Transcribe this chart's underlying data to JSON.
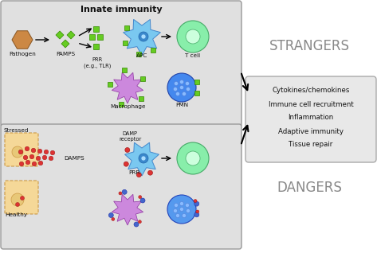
{
  "bg_color": "#f5f5f5",
  "panel_bg": "#e0e0e0",
  "panel_edge": "#999999",
  "title_top": "Innate immunity",
  "label_strangers": "STRANGERS",
  "label_dangers": "DANGERS",
  "box_labels": [
    "Cytokines/chemokines",
    "Immune cell recruitment",
    "Inflammation",
    "Adaptive immunity",
    "Tissue repair"
  ],
  "apc_color": "#7ac8f0",
  "apc_edge": "#4488cc",
  "tcell_color": "#88eeaa",
  "tcell_edge": "#44aa66",
  "macrophage_color": "#cc88dd",
  "macrophage_edge": "#9944aa",
  "pmn_color": "#4488ee",
  "pmn_edge": "#2244aa",
  "pathogen_color": "#cc8844",
  "pathogen_edge": "#885522",
  "pamp_color": "#66cc22",
  "pamp_edge": "#338800",
  "damp_color": "#dd3333",
  "damp_edge": "#991111",
  "stressed_color": "#f5d898",
  "stressed_edge": "#cc9944",
  "healthy_color": "#f5d898",
  "healthy_edge": "#cc9944",
  "strangers_color": "#888888",
  "dangers_color": "#888888",
  "arrow_color": "#111111",
  "box_bg": "#e8e8e8",
  "box_edge": "#aaaaaa",
  "outer_bg": "#ffffff",
  "outer_edge": "#cccccc"
}
